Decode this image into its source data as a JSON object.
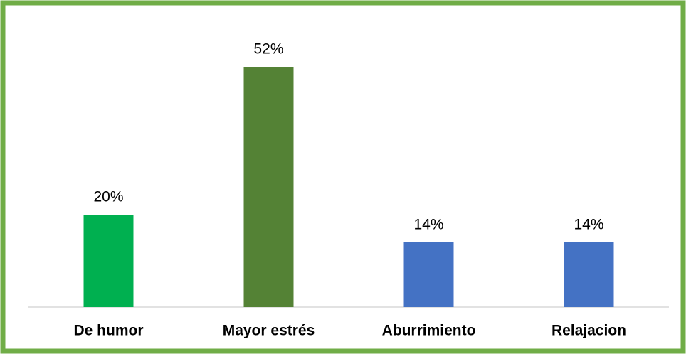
{
  "chart_data": {
    "type": "bar",
    "categories": [
      "De humor",
      "Mayor estrés",
      "Aburrimiento",
      "Relajacion"
    ],
    "values": [
      20,
      52,
      14,
      14
    ],
    "value_labels": [
      "20%",
      "52%",
      "14%",
      "14%"
    ],
    "colors": [
      "#00b050",
      "#548235",
      "#4472c4",
      "#4472c4"
    ],
    "border_color": "#70ad47"
  }
}
